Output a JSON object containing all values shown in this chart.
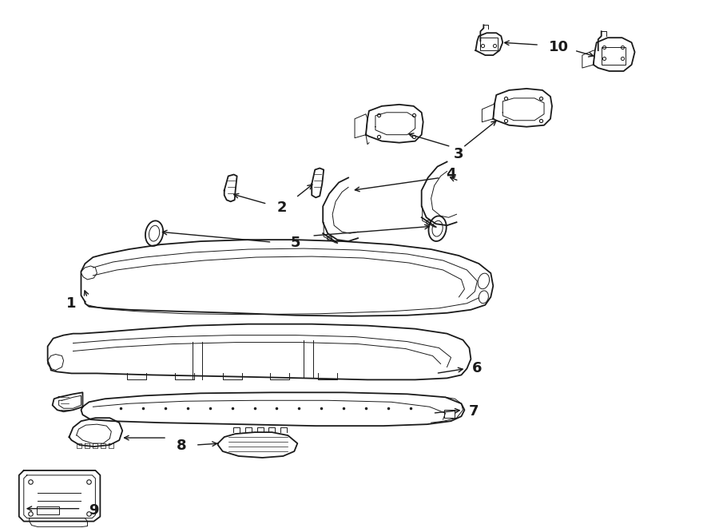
{
  "bg_color": "#ffffff",
  "line_color": "#1a1a1a",
  "fig_width": 9.0,
  "fig_height": 6.61,
  "dpi": 100,
  "label_fontsize": 13
}
